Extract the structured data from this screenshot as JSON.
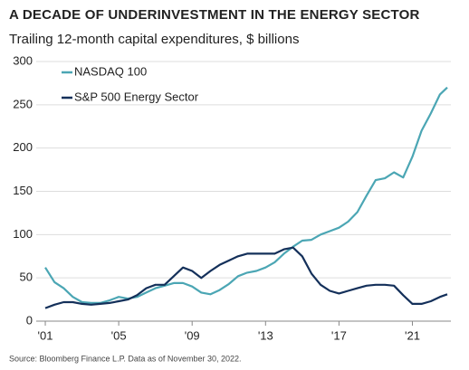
{
  "chart_data": {
    "type": "line",
    "title": "A DECADE OF UNDERINVESTMENT IN THE ENERGY SECTOR",
    "subtitle": "Trailing 12-month capital expenditures, $ billions",
    "source": "Source: Bloomberg Finance L.P. Data as of November 30, 2022.",
    "x": [
      2001,
      2001.5,
      2002,
      2002.5,
      2003,
      2003.5,
      2004,
      2004.5,
      2005,
      2005.5,
      2006,
      2006.5,
      2007,
      2007.5,
      2008,
      2008.5,
      2009,
      2009.5,
      2010,
      2010.5,
      2011,
      2011.5,
      2012,
      2012.5,
      2013,
      2013.5,
      2014,
      2014.5,
      2015,
      2015.5,
      2016,
      2016.5,
      2017,
      2017.5,
      2018,
      2018.5,
      2019,
      2019.5,
      2020,
      2020.5,
      2021,
      2021.5,
      2022,
      2022.5,
      2022.9
    ],
    "series": [
      {
        "name": "NASDAQ 100",
        "color": "#4ba6b4",
        "values": [
          62,
          45,
          38,
          28,
          22,
          21,
          21,
          24,
          28,
          26,
          28,
          33,
          38,
          41,
          44,
          44,
          40,
          33,
          31,
          36,
          43,
          52,
          56,
          58,
          62,
          68,
          78,
          86,
          93,
          94,
          100,
          104,
          108,
          115,
          126,
          145,
          163,
          165,
          172,
          166,
          190,
          220,
          240,
          262,
          270
        ]
      },
      {
        "name": "S&P 500 Energy Sector",
        "color": "#14305a",
        "values": [
          15,
          19,
          22,
          22,
          20,
          19,
          20,
          21,
          23,
          25,
          30,
          38,
          42,
          42,
          52,
          62,
          58,
          50,
          58,
          65,
          70,
          75,
          78,
          78,
          78,
          78,
          83,
          85,
          75,
          55,
          42,
          35,
          32,
          35,
          38,
          41,
          42,
          42,
          41,
          30,
          20,
          20,
          23,
          28,
          31
        ]
      }
    ],
    "xlim": [
      2000.9,
      2022.9
    ],
    "xticks": [
      {
        "value": 2001,
        "label": "'01"
      },
      {
        "value": 2005,
        "label": "'05"
      },
      {
        "value": 2009,
        "label": "'09"
      },
      {
        "value": 2013,
        "label": "'13"
      },
      {
        "value": 2017,
        "label": "'17"
      },
      {
        "value": 2021,
        "label": "'21"
      }
    ],
    "ylim": [
      0,
      300
    ],
    "yticks": [
      0,
      50,
      100,
      150,
      200,
      250,
      300
    ],
    "grid": true,
    "legend": "upper-left"
  }
}
